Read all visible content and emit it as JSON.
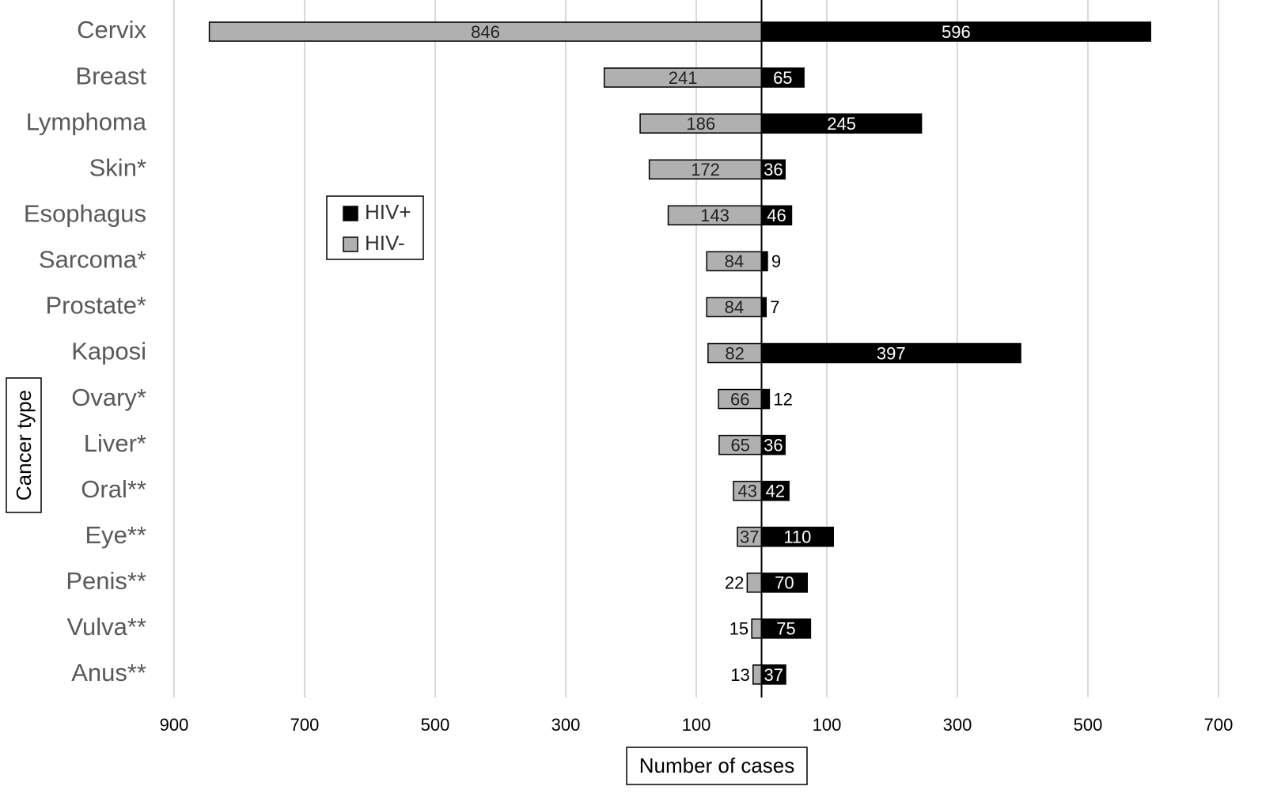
{
  "chart_data": {
    "type": "butterfly",
    "categories": [
      "Cervix",
      "Breast",
      "Lymphoma",
      "Skin*",
      "Esophagus",
      "Sarcoma*",
      "Prostate*",
      "Kaposi",
      "Ovary*",
      "Liver*",
      "Oral**",
      "Eye**",
      "Penis**",
      "Vulva**",
      "Anus**"
    ],
    "series": [
      {
        "name": "HIV+",
        "color": "#000000",
        "values": [
          596,
          65,
          245,
          36,
          46,
          9,
          7,
          397,
          12,
          36,
          42,
          110,
          70,
          75,
          37
        ]
      },
      {
        "name": "HIV-",
        "color": "#b0b0b0",
        "values": [
          -846,
          -241,
          -186,
          -172,
          -143,
          -84,
          -84,
          -82,
          -66,
          -65,
          -43,
          -37,
          -22,
          -15,
          -13
        ],
        "value_labels": [
          "846",
          "241",
          "186",
          "172",
          "143",
          "84",
          "84",
          "82",
          "66",
          "65",
          "43",
          "37",
          "22",
          "15",
          "13"
        ]
      }
    ],
    "xlim": [
      -900,
      700
    ],
    "xticks": [
      {
        "value": -900,
        "label": "900"
      },
      {
        "value": -700,
        "label": "700"
      },
      {
        "value": -500,
        "label": "500"
      },
      {
        "value": -300,
        "label": "300"
      },
      {
        "value": -100,
        "label": "100"
      },
      100,
      300,
      500,
      700
    ],
    "xlabel": "Number of cases",
    "ylabel": "Cancer type",
    "grid": true
  }
}
